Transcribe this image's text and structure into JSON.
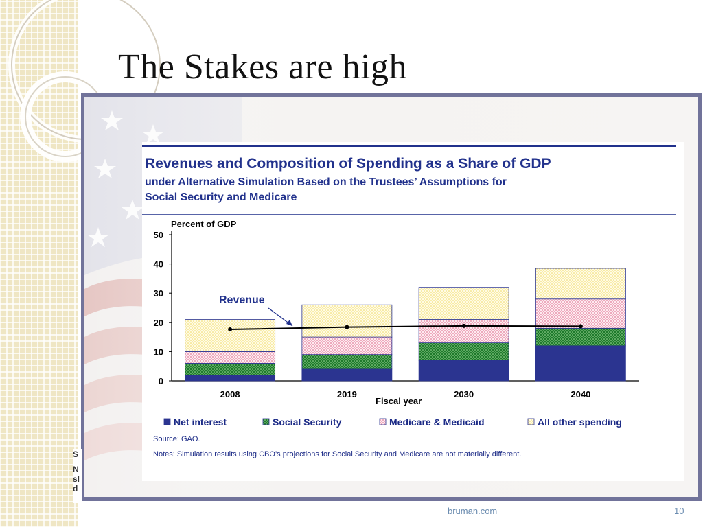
{
  "slide": {
    "title": "The Stakes are high",
    "footer": "bruman.com",
    "page_number": "10",
    "left_edge_fragments": [
      "S",
      "N",
      "sl",
      "d"
    ]
  },
  "colors": {
    "frame_border": "#71739a",
    "header_blue": "#21318c",
    "net_interest": "#2b3490",
    "social_security": "#1f7a2c",
    "medicare": "#f4b6c6",
    "other": "#fbf1b8",
    "revenue_line": "#000000"
  },
  "chart_data": {
    "type": "bar",
    "stacked": true,
    "title": "Revenues and Composition of Spending as a Share of GDP",
    "subtitle_lines": [
      "under Alternative Simulation Based on the Trustees’ Assumptions for",
      "Social Security and Medicare"
    ],
    "ylabel": "Percent of GDP",
    "xlabel": "Fiscal year",
    "ylim": [
      0,
      50
    ],
    "yticks": [
      0,
      10,
      20,
      30,
      40,
      50
    ],
    "categories": [
      "2008",
      "2019",
      "2030",
      "2040"
    ],
    "series": [
      {
        "name": "Net interest",
        "values": [
          2,
          4,
          7,
          12
        ],
        "color": "#2b3490",
        "pattern": "solid"
      },
      {
        "name": "Social Security",
        "values": [
          4,
          5,
          6,
          6
        ],
        "color": "#1f7a2c",
        "pattern": "dotted"
      },
      {
        "name": "Medicare & Medicaid",
        "values": [
          4,
          6,
          8,
          10
        ],
        "color": "#f4b6c6",
        "pattern": "dotted"
      },
      {
        "name": "All other spending",
        "values": [
          11,
          11,
          11,
          10.5
        ],
        "color": "#fbf1b8",
        "pattern": "dotted"
      }
    ],
    "line": {
      "name": "Revenue",
      "values": [
        17.6,
        18.4,
        18.8,
        18.7
      ]
    },
    "source": "Source:  GAO.",
    "notes": "Notes: Simulation results using CBO’s projections for Social Security and Medicare are not materially different."
  }
}
